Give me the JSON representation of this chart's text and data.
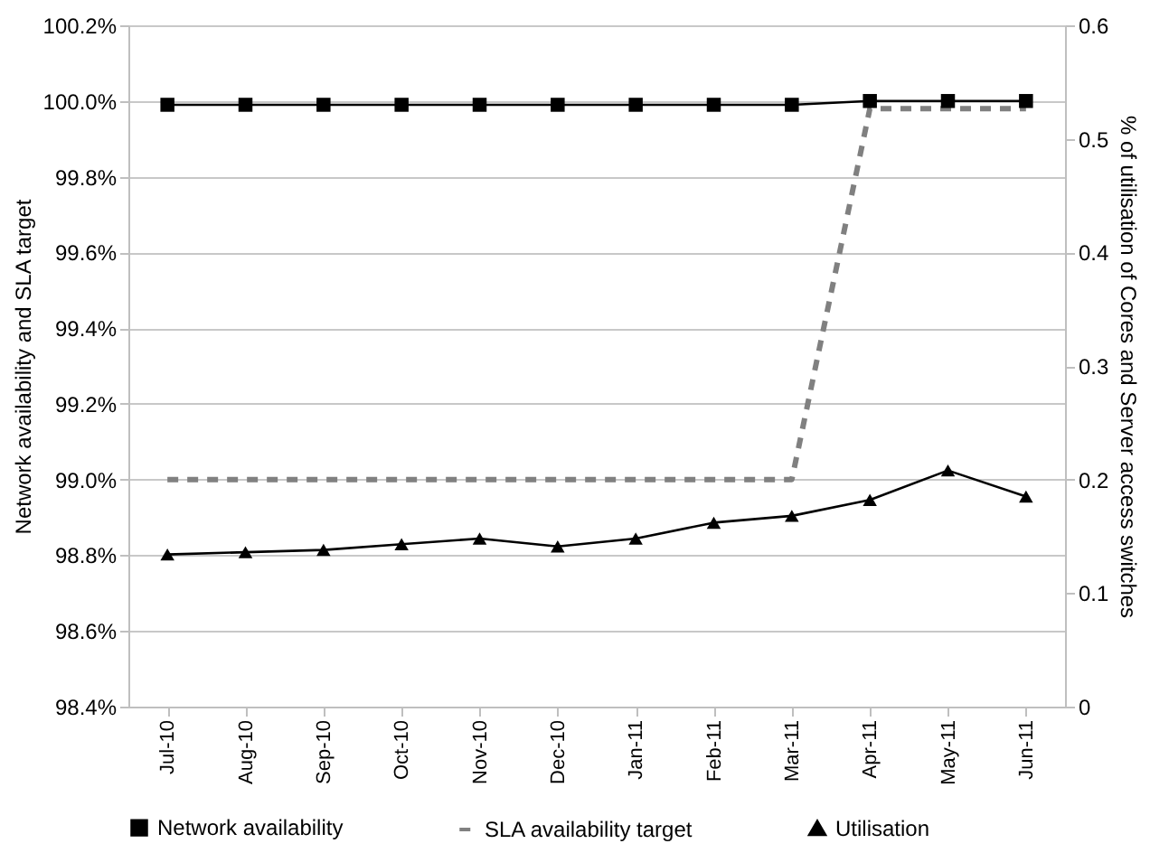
{
  "chart_data": {
    "type": "line",
    "ylabel": "Network availability and SLA target",
    "y2label": "% of utilisation of Cores and Server access switches",
    "categories": [
      "Jul-10",
      "Aug-10",
      "Sep-10",
      "Oct-10",
      "Nov-10",
      "Dec-10",
      "Jan-11",
      "Feb-11",
      "Mar-11",
      "Apr-11",
      "May-11",
      "Jun-11"
    ],
    "series": [
      {
        "name": "Network availability",
        "color": "#000000",
        "marker": "square",
        "line_style": "solid",
        "values": [
          99.99,
          99.99,
          99.99,
          99.99,
          99.99,
          99.99,
          99.99,
          99.99,
          99.99,
          100.0,
          100.0,
          100.0
        ]
      },
      {
        "name": "SLA availability target",
        "color": "#808080",
        "marker": "none",
        "line_style": "dashed",
        "values": [
          99.0,
          99.0,
          99.0,
          99.0,
          99.0,
          99.0,
          99.0,
          99.0,
          99.0,
          99.98,
          99.98,
          99.98
        ]
      },
      {
        "name": "Utilisation",
        "color": "#000000",
        "marker": "triangle",
        "line_style": "solid",
        "axis": "y2",
        "values": [
          0.134,
          0.136,
          0.138,
          0.143,
          0.148,
          0.141,
          0.148,
          0.162,
          0.168,
          0.182,
          0.208,
          0.185
        ]
      }
    ],
    "ylim": [
      98.4,
      100.2
    ],
    "yticks": [
      {
        "value": 98.4,
        "label": "98.4%"
      },
      {
        "value": 98.6,
        "label": "98.6%"
      },
      {
        "value": 98.8,
        "label": "98.8%"
      },
      {
        "value": 99.0,
        "label": "99.0%"
      },
      {
        "value": 99.2,
        "label": "99.2%"
      },
      {
        "value": 99.4,
        "label": "99.4%"
      },
      {
        "value": 99.6,
        "label": "99.6%"
      },
      {
        "value": 99.8,
        "label": "99.8%"
      },
      {
        "value": 100.0,
        "label": "100.0%"
      },
      {
        "value": 100.2,
        "label": "100.2%"
      }
    ],
    "y2lim": [
      0,
      0.6
    ],
    "y2ticks": [
      0,
      0.1,
      0.2,
      0.3,
      0.4,
      0.5,
      0.6
    ],
    "grid": "y",
    "legend": "bottom"
  }
}
